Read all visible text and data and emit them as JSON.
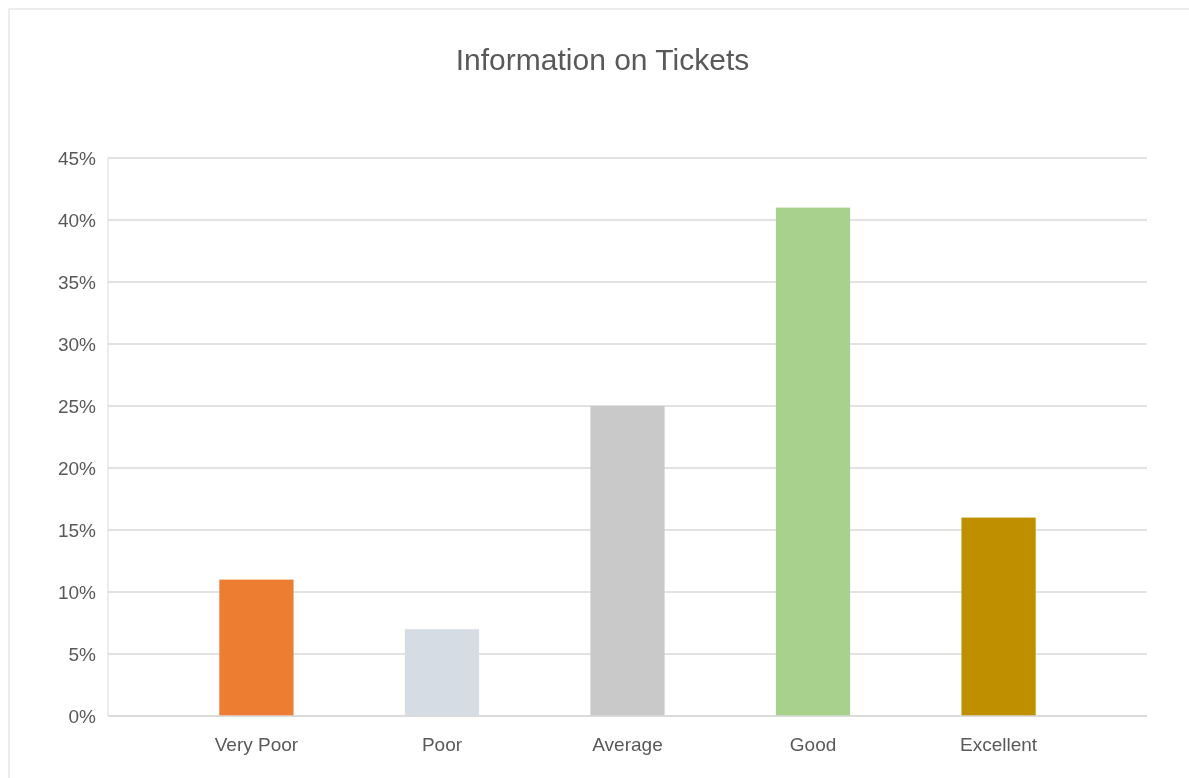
{
  "chart_data": {
    "type": "bar",
    "title": "Information on Tickets",
    "categories": [
      "Very Poor",
      "Poor",
      "Average",
      "Good",
      "Excellent"
    ],
    "values": [
      11,
      7,
      25,
      41,
      16
    ],
    "colors": [
      "#ed7d31",
      "#d6dce4",
      "#c9c9c9",
      "#a9d18e",
      "#bf8f00"
    ],
    "ylim": [
      0,
      45
    ],
    "yticks": [
      {
        "value": 0,
        "label": "0%"
      },
      {
        "value": 5,
        "label": "5%"
      },
      {
        "value": 10,
        "label": "10%"
      },
      {
        "value": 15,
        "label": "15%"
      },
      {
        "value": 20,
        "label": "20%"
      },
      {
        "value": 25,
        "label": "25%"
      },
      {
        "value": 30,
        "label": "30%"
      },
      {
        "value": 35,
        "label": "35%"
      },
      {
        "value": 40,
        "label": "40%"
      },
      {
        "value": 45,
        "label": "45%"
      }
    ],
    "grid": true
  }
}
